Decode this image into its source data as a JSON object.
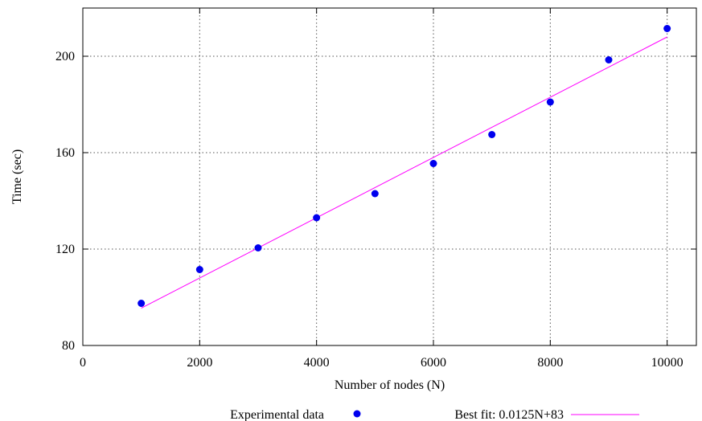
{
  "chart_data": {
    "type": "scatter",
    "title": "",
    "xlabel": "Number of nodes (N)",
    "ylabel": "Time (sec)",
    "xlim": [
      0,
      10500
    ],
    "ylim": [
      80,
      220
    ],
    "xticks": [
      0,
      2000,
      4000,
      6000,
      8000,
      10000
    ],
    "yticks": [
      80,
      120,
      160,
      200
    ],
    "grid": true,
    "legend_position": "bottom",
    "series": [
      {
        "name": "Experimental data",
        "kind": "points",
        "color": "#0000ee",
        "x": [
          1000,
          2000,
          3000,
          4000,
          5000,
          6000,
          7000,
          8000,
          9000,
          10000
        ],
        "y": [
          97.5,
          111.5,
          120.5,
          133,
          143,
          155.5,
          167.5,
          181,
          198.5,
          211.5
        ]
      },
      {
        "name": "Best fit: 0.0125N+83",
        "kind": "line",
        "color": "#ff00ff",
        "x": [
          1000,
          10000
        ],
        "y": [
          95.5,
          208
        ]
      }
    ]
  }
}
